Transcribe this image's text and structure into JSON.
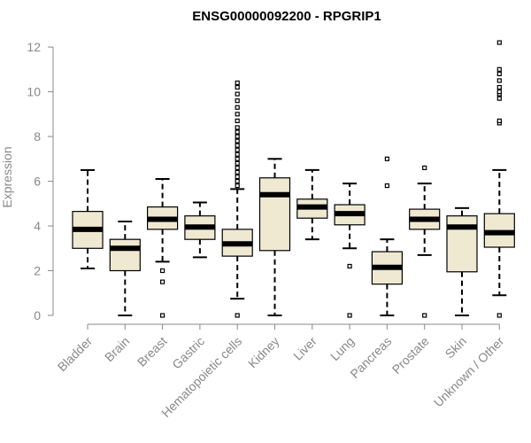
{
  "chart_data": {
    "type": "boxplot",
    "title": "ENSG00000092200 - RPGRIP1",
    "xlabel": "",
    "ylabel": "Expression",
    "ylim": [
      0,
      12.4
    ],
    "yticks": [
      0,
      2,
      4,
      6,
      8,
      10,
      12
    ],
    "colors": {
      "box_fill": "#efe9d2",
      "stroke": "#000000",
      "axis": "#888888"
    },
    "categories": [
      "Bladder",
      "Brain",
      "Breast",
      "Gastric",
      "Hematopoietic cells",
      "Kidney",
      "Liver",
      "Lung",
      "Pancreas",
      "Prostate",
      "Skin",
      "Unknown / Other"
    ],
    "boxes": [
      {
        "name": "Bladder",
        "q1": 3.0,
        "median": 3.85,
        "q3": 4.65,
        "whisker_low": 2.1,
        "whisker_high": 6.5,
        "outliers": []
      },
      {
        "name": "Brain",
        "q1": 2.0,
        "median": 3.0,
        "q3": 3.4,
        "whisker_low": 0.0,
        "whisker_high": 4.2,
        "outliers": []
      },
      {
        "name": "Breast",
        "q1": 3.85,
        "median": 4.3,
        "q3": 4.85,
        "whisker_low": 2.4,
        "whisker_high": 6.1,
        "outliers": [
          2.0,
          1.5,
          0.0
        ]
      },
      {
        "name": "Gastric",
        "q1": 3.4,
        "median": 3.95,
        "q3": 4.45,
        "whisker_low": 2.6,
        "whisker_high": 5.05,
        "outliers": []
      },
      {
        "name": "Hematopoietic cells",
        "q1": 2.65,
        "median": 3.2,
        "q3": 3.85,
        "whisker_low": 0.75,
        "whisker_high": 5.65,
        "outliers": [
          0.0,
          5.8,
          6.0,
          6.2,
          6.4,
          6.6,
          6.8,
          7.0,
          7.2,
          7.4,
          7.6,
          7.8,
          8.0,
          8.2,
          8.4,
          8.7,
          9.0,
          9.3,
          9.6,
          9.9,
          10.2,
          10.4
        ]
      },
      {
        "name": "Kidney",
        "q1": 2.9,
        "median": 5.4,
        "q3": 6.15,
        "whisker_low": 0.0,
        "whisker_high": 7.0,
        "outliers": []
      },
      {
        "name": "Liver",
        "q1": 4.35,
        "median": 4.85,
        "q3": 5.2,
        "whisker_low": 3.4,
        "whisker_high": 6.5,
        "outliers": []
      },
      {
        "name": "Lung",
        "q1": 4.05,
        "median": 4.55,
        "q3": 4.95,
        "whisker_low": 3.0,
        "whisker_high": 5.9,
        "outliers": [
          2.2,
          0.0
        ]
      },
      {
        "name": "Pancreas",
        "q1": 1.4,
        "median": 2.15,
        "q3": 2.85,
        "whisker_low": 0.0,
        "whisker_high": 3.4,
        "outliers": [
          5.8,
          7.0
        ]
      },
      {
        "name": "Prostate",
        "q1": 3.85,
        "median": 4.3,
        "q3": 4.75,
        "whisker_low": 2.7,
        "whisker_high": 5.9,
        "outliers": [
          6.6,
          0.0
        ]
      },
      {
        "name": "Skin",
        "q1": 1.95,
        "median": 3.95,
        "q3": 4.45,
        "whisker_low": 0.0,
        "whisker_high": 4.8,
        "outliers": []
      },
      {
        "name": "Unknown / Other",
        "q1": 3.05,
        "median": 3.7,
        "q3": 4.55,
        "whisker_low": 0.9,
        "whisker_high": 6.5,
        "outliers": [
          0.0,
          8.6,
          8.7,
          9.7,
          9.9,
          10.0,
          10.2,
          10.5,
          10.8,
          11.0,
          12.2
        ]
      }
    ]
  }
}
